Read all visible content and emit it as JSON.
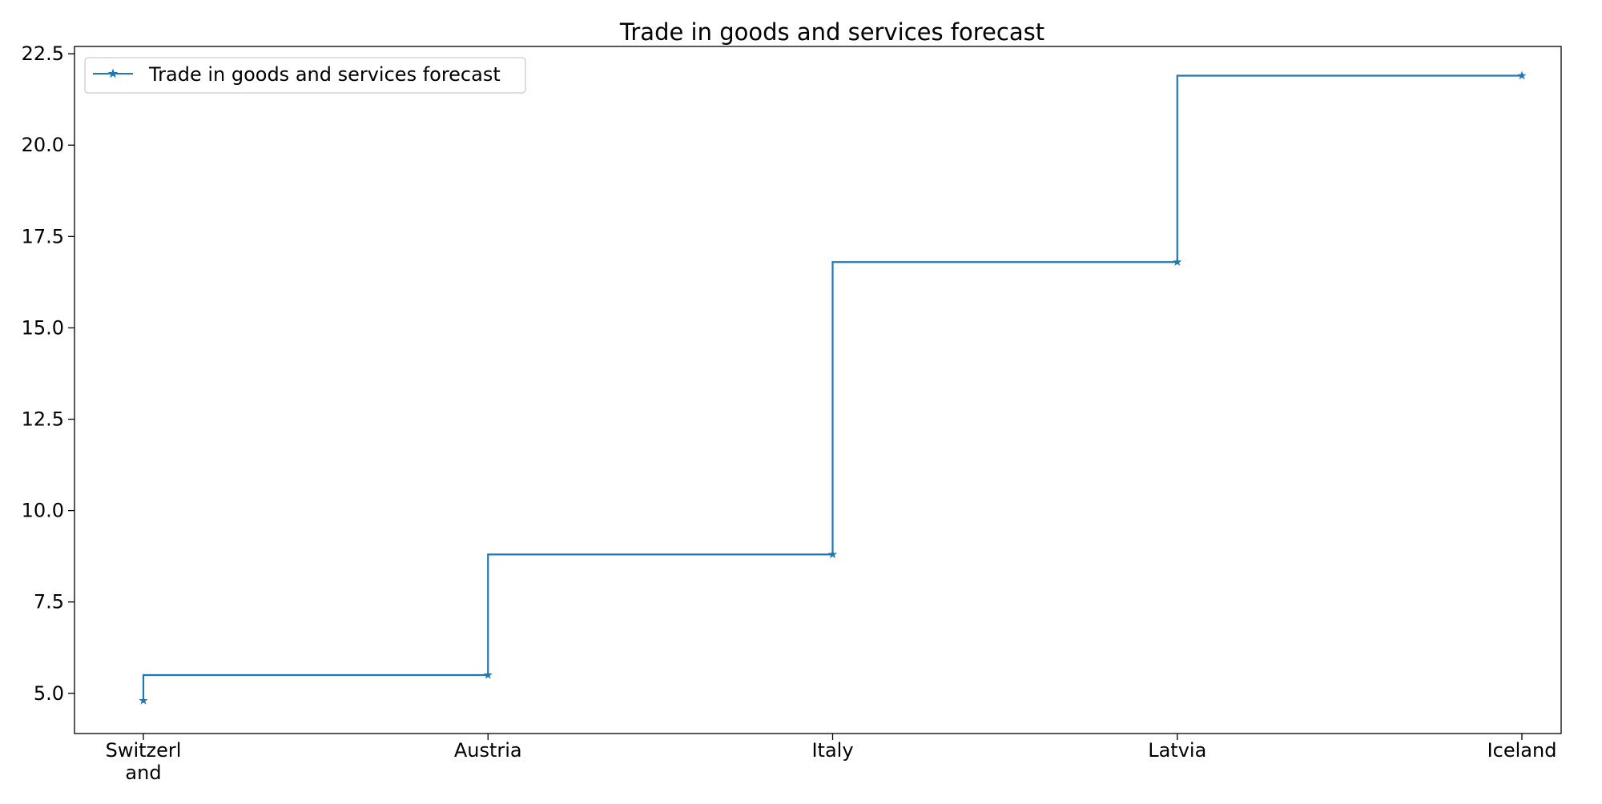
{
  "chart_data": {
    "type": "line",
    "subtype": "step",
    "title": "Trade in goods and services forecast",
    "xlabel": "",
    "ylabel": "",
    "categories": [
      "Switzerl\nand",
      "Austria",
      "Italy",
      "Latvia",
      "Iceland"
    ],
    "series": [
      {
        "name": "Trade in goods and services forecast",
        "values": [
          4.8,
          5.5,
          8.8,
          16.8,
          21.9
        ],
        "color": "#1f77b4",
        "marker": "star"
      }
    ],
    "ylim": [
      3.9,
      22.7
    ],
    "yticks": [
      5.0,
      7.5,
      10.0,
      12.5,
      15.0,
      17.5,
      20.0,
      22.5
    ],
    "ytick_labels": [
      "5.0",
      "7.5",
      "10.0",
      "12.5",
      "15.0",
      "17.5",
      "20.0",
      "22.5"
    ],
    "grid": false,
    "legend_position": "upper-left"
  }
}
